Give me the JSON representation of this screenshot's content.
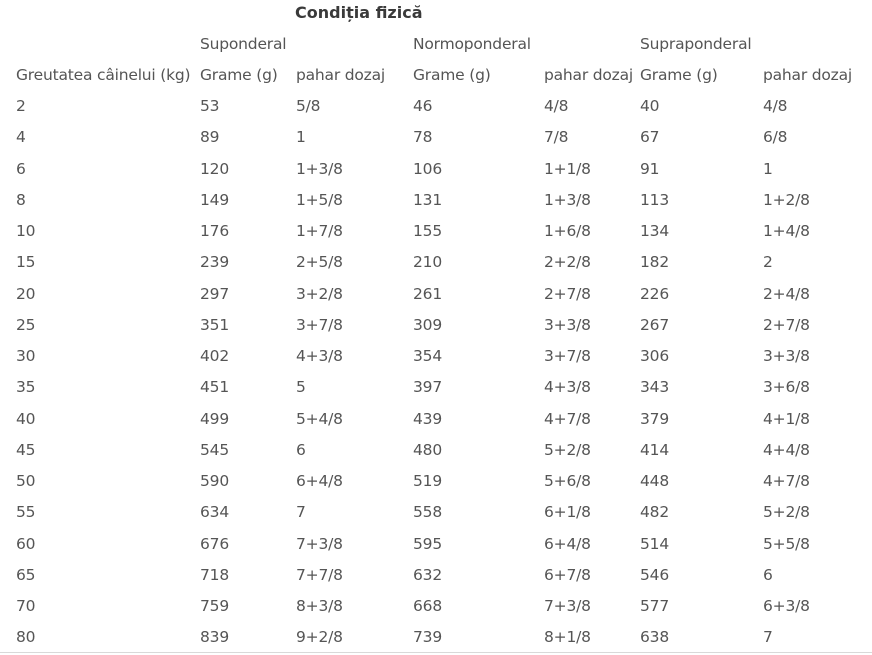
{
  "table": {
    "title": "Condiția fizică",
    "groups": [
      "Suponderal",
      "Normoponderal",
      "Supraponderal"
    ],
    "headers": [
      "Greutatea câinelui (kg)",
      "Grame (g)",
      "pahar dozaj",
      "Grame (g)",
      "pahar dozaj",
      "Grame (g)",
      "pahar dozaj"
    ],
    "rows": [
      [
        "2",
        "53",
        "5/8",
        "46",
        "4/8",
        "40",
        "4/8"
      ],
      [
        "4",
        "89",
        "1",
        "78",
        "7/8",
        "67",
        "6/8"
      ],
      [
        "6",
        "120",
        "1+3/8",
        "106",
        "1+1/8",
        "91",
        "1"
      ],
      [
        "8",
        "149",
        "1+5/8",
        "131",
        "1+3/8",
        "113",
        "1+2/8"
      ],
      [
        "10",
        "176",
        "1+7/8",
        "155",
        "1+6/8",
        "134",
        "1+4/8"
      ],
      [
        "15",
        "239",
        "2+5/8",
        "210",
        "2+2/8",
        "182",
        "2"
      ],
      [
        "20",
        "297",
        "3+2/8",
        "261",
        "2+7/8",
        "226",
        "2+4/8"
      ],
      [
        "25",
        "351",
        "3+7/8",
        "309",
        "3+3/8",
        "267",
        "2+7/8"
      ],
      [
        "30",
        "402",
        "4+3/8",
        "354",
        "3+7/8",
        "306",
        "3+3/8"
      ],
      [
        "35",
        "451",
        "5",
        "397",
        "4+3/8",
        "343",
        "3+6/8"
      ],
      [
        "40",
        "499",
        "5+4/8",
        "439",
        "4+7/8",
        "379",
        "4+1/8"
      ],
      [
        "45",
        "545",
        "6",
        "480",
        "5+2/8",
        "414",
        "4+4/8"
      ],
      [
        "50",
        "590",
        "6+4/8",
        "519",
        "5+6/8",
        "448",
        "4+7/8"
      ],
      [
        "55",
        "634",
        "7",
        "558",
        "6+1/8",
        "482",
        "5+2/8"
      ],
      [
        "60",
        "676",
        "7+3/8",
        "595",
        "6+4/8",
        "514",
        "5+5/8"
      ],
      [
        "65",
        "718",
        "7+7/8",
        "632",
        "6+7/8",
        "546",
        "6"
      ],
      [
        "70",
        "759",
        "8+3/8",
        "668",
        "7+3/8",
        "577",
        "6+3/8"
      ],
      [
        "80",
        "839",
        "9+2/8",
        "739",
        "8+1/8",
        "638",
        "7"
      ]
    ]
  }
}
